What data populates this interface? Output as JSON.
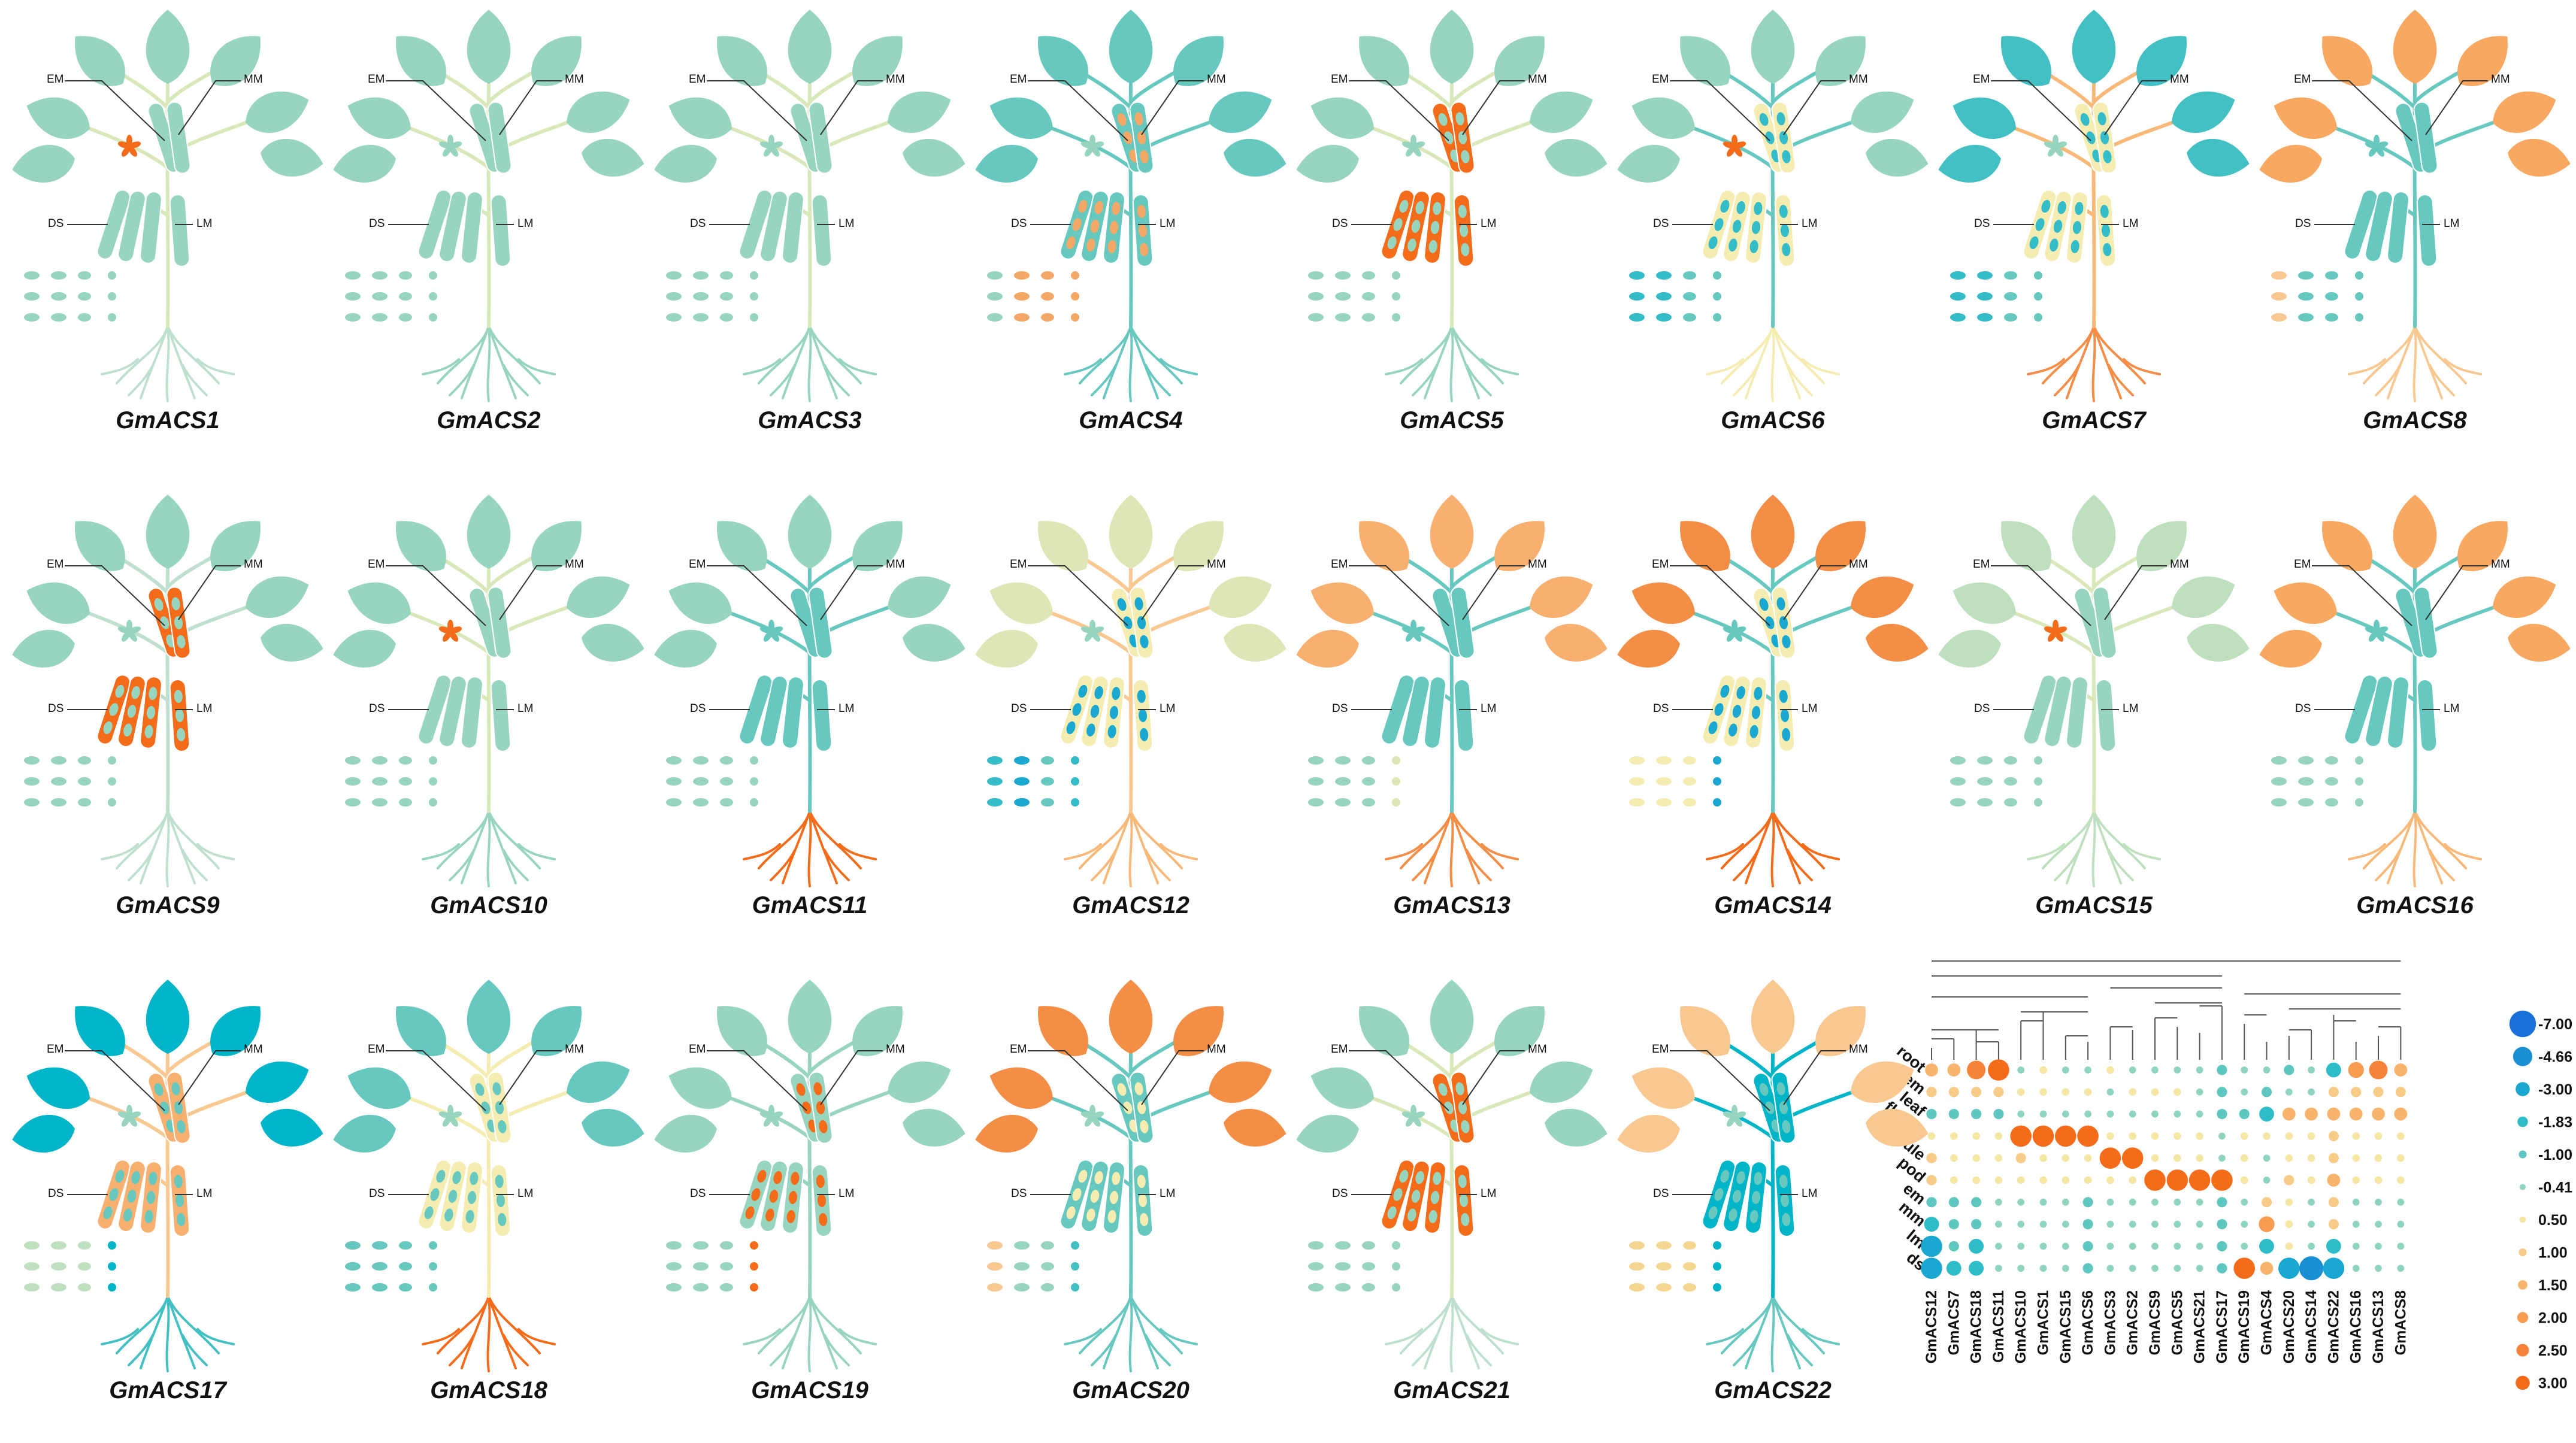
{
  "colors": {
    "low": "#00b5c8",
    "mid": "#f5ecb2",
    "high": "#f46c1a",
    "neutral": "#98d5be"
  },
  "tissue_labels": {
    "em": "EM",
    "mm": "MM",
    "ds": "DS",
    "lm": "LM"
  },
  "plants": [
    {
      "name": "GmACS1",
      "leaf": "#98d5be",
      "stem": "#d8e8b8",
      "root": "#bfe0cf",
      "pod": "#98d5be",
      "seed": "#98d5be",
      "flower": "#f46c1a",
      "dots": [
        "#98d5be",
        "#98d5be",
        "#98d5be",
        "#98d5be"
      ]
    },
    {
      "name": "GmACS2",
      "leaf": "#98d5be",
      "stem": "#d8e8b8",
      "root": "#98d5be",
      "pod": "#98d5be",
      "seed": "#98d5be",
      "flower": "#98d5be",
      "dots": [
        "#98d5be",
        "#98d5be",
        "#98d5be",
        "#98d5be"
      ]
    },
    {
      "name": "GmACS3",
      "leaf": "#98d5be",
      "stem": "#d8e8b8",
      "root": "#98d5be",
      "pod": "#98d5be",
      "seed": "#98d5be",
      "flower": "#98d5be",
      "dots": [
        "#98d5be",
        "#98d5be",
        "#98d5be",
        "#98d5be"
      ]
    },
    {
      "name": "GmACS4",
      "leaf": "#66c8bf",
      "stem": "#66c8bf",
      "root": "#66c8bf",
      "pod": "#66c8bf",
      "seed": "#f4a868",
      "flower": "#98d5be",
      "dots": [
        "#98d5be",
        "#f4a868",
        "#f4a868",
        "#f4a868"
      ]
    },
    {
      "name": "GmACS5",
      "leaf": "#98d5be",
      "stem": "#d8e8b8",
      "root": "#98d5be",
      "pod": "#f46c1a",
      "seed": "#98d5be",
      "flower": "#98d5be",
      "dots": [
        "#98d5be",
        "#98d5be",
        "#98d5be",
        "#98d5be"
      ]
    },
    {
      "name": "GmACS6",
      "leaf": "#98d5be",
      "stem": "#66c8bf",
      "root": "#f5ecb2",
      "pod": "#f5ecb2",
      "seed": "#34bcc8",
      "flower": "#f46c1a",
      "dots": [
        "#34bcc8",
        "#34bcc8",
        "#66c8bf",
        "#66c8bf"
      ]
    },
    {
      "name": "GmACS7",
      "leaf": "#42c0c4",
      "stem": "#f8b978",
      "root": "#f48d45",
      "pod": "#f5ecb2",
      "seed": "#34bcc8",
      "flower": "#98d5be",
      "dots": [
        "#34bcc8",
        "#34bcc8",
        "#66c8bf",
        "#66c8bf"
      ]
    },
    {
      "name": "GmACS8",
      "leaf": "#f8a860",
      "stem": "#66c8bf",
      "root": "#f8c890",
      "pod": "#66c8bf",
      "seed": "#66c8bf",
      "flower": "#66c8bf",
      "dots": [
        "#f8c890",
        "#66c8bf",
        "#66c8bf",
        "#66c8bf"
      ]
    },
    {
      "name": "GmACS9",
      "leaf": "#98d5be",
      "stem": "#bfe0cf",
      "root": "#bfe0cf",
      "pod": "#f46c1a",
      "seed": "#98d5be",
      "flower": "#98d5be",
      "dots": [
        "#98d5be",
        "#98d5be",
        "#98d5be",
        "#98d5be"
      ]
    },
    {
      "name": "GmACS10",
      "leaf": "#98d5be",
      "stem": "#d8e8b8",
      "root": "#98d5be",
      "pod": "#98d5be",
      "seed": "#98d5be",
      "flower": "#f46c1a",
      "dots": [
        "#98d5be",
        "#98d5be",
        "#98d5be",
        "#98d5be"
      ]
    },
    {
      "name": "GmACS11",
      "leaf": "#98d5be",
      "stem": "#66c8bf",
      "root": "#f46c1a",
      "pod": "#66c8bf",
      "seed": "#66c8bf",
      "flower": "#66c8bf",
      "dots": [
        "#98d5be",
        "#98d5be",
        "#98d5be",
        "#98d5be"
      ]
    },
    {
      "name": "GmACS12",
      "leaf": "#dde6b4",
      "stem": "#f8c890",
      "root": "#f8b978",
      "pod": "#f5ecb2",
      "seed": "#1aa8d0",
      "flower": "#98d5be",
      "dots": [
        "#34bcc8",
        "#1aa8d0",
        "#66c8bf",
        "#34bcc8"
      ]
    },
    {
      "name": "GmACS13",
      "leaf": "#f8b070",
      "stem": "#66c8bf",
      "root": "#f48d45",
      "pod": "#66c8bf",
      "seed": "#66c8bf",
      "flower": "#66c8bf",
      "dots": [
        "#98d5be",
        "#98d5be",
        "#98d5be",
        "#dde6b4"
      ]
    },
    {
      "name": "GmACS14",
      "leaf": "#f48d45",
      "stem": "#66c8bf",
      "root": "#f46c1a",
      "pod": "#f5ecb2",
      "seed": "#1aa8d0",
      "flower": "#66c8bf",
      "dots": [
        "#f5ecb2",
        "#f5ecb2",
        "#f5ecb2",
        "#1aa8d0"
      ]
    },
    {
      "name": "GmACS15",
      "leaf": "#bfe0bf",
      "stem": "#d8e8b8",
      "root": "#bfe0bf",
      "pod": "#98d5be",
      "seed": "#98d5be",
      "flower": "#f46c1a",
      "dots": [
        "#98d5be",
        "#98d5be",
        "#98d5be",
        "#98d5be"
      ]
    },
    {
      "name": "GmACS16",
      "leaf": "#f8a860",
      "stem": "#66c8bf",
      "root": "#f8b978",
      "pod": "#66c8bf",
      "seed": "#66c8bf",
      "flower": "#66c8bf",
      "dots": [
        "#98d5be",
        "#98d5be",
        "#98d5be",
        "#98d5be"
      ]
    },
    {
      "name": "GmACS17",
      "leaf": "#00b5c8",
      "stem": "#f8c890",
      "root": "#42c0c4",
      "pod": "#f8b070",
      "seed": "#66c8bf",
      "flower": "#98d5be",
      "dots": [
        "#bfe0bf",
        "#bfe0bf",
        "#bfe0bf",
        "#00b5c8"
      ]
    },
    {
      "name": "GmACS18",
      "leaf": "#66c8bf",
      "stem": "#f5ecb2",
      "root": "#f46c1a",
      "pod": "#f5ecb2",
      "seed": "#66c8bf",
      "flower": "#98d5be",
      "dots": [
        "#66c8bf",
        "#66c8bf",
        "#66c8bf",
        "#66c8bf"
      ]
    },
    {
      "name": "GmACS19",
      "leaf": "#98d5be",
      "stem": "#98d5be",
      "root": "#98d5be",
      "pod": "#98d5be",
      "seed": "#f46c1a",
      "flower": "#98d5be",
      "dots": [
        "#98d5be",
        "#98d5be",
        "#98d5be",
        "#f46c1a"
      ]
    },
    {
      "name": "GmACS20",
      "leaf": "#f48d45",
      "stem": "#66c8bf",
      "root": "#66c8bf",
      "pod": "#66c8bf",
      "seed": "#f5ecb2",
      "flower": "#98d5be",
      "dots": [
        "#f8c890",
        "#98d5be",
        "#98d5be",
        "#42c0c4"
      ]
    },
    {
      "name": "GmACS21",
      "leaf": "#98d5be",
      "stem": "#d8e8b8",
      "root": "#bfe0cf",
      "pod": "#f46c1a",
      "seed": "#98d5be",
      "flower": "#98d5be",
      "dots": [
        "#98d5be",
        "#98d5be",
        "#98d5be",
        "#98d5be"
      ]
    },
    {
      "name": "GmACS22",
      "leaf": "#f8c890",
      "stem": "#00b5c8",
      "root": "#66c8bf",
      "pod": "#00b5c8",
      "seed": "#66c8bf",
      "flower": "#98d5be",
      "dots": [
        "#f5d690",
        "#f5d690",
        "#f5d690",
        "#00b5c8"
      ]
    }
  ],
  "heatmap": {
    "rows": [
      "root",
      "stem",
      "leaf",
      "flower",
      "nodule",
      "pod",
      "em",
      "mm",
      "lm",
      "ds"
    ],
    "columns": [
      "GmACS12",
      "GmACS7",
      "GmACS18",
      "GmACS11",
      "GmACS10",
      "GmACS1",
      "GmACS15",
      "GmACS6",
      "GmACS3",
      "GmACS2",
      "GmACS9",
      "GmACS5",
      "GmACS21",
      "GmACS17",
      "GmACS19",
      "GmACS4",
      "GmACS20",
      "GmACS14",
      "GmACS22",
      "GmACS16",
      "GmACS13",
      "GmACS8"
    ],
    "values": [
      [
        1.5,
        1.5,
        2.5,
        3.0,
        -0.41,
        0.5,
        -0.41,
        -0.41,
        0.5,
        -0.41,
        -0.41,
        -0.41,
        -0.41,
        -1.0,
        -0.41,
        -0.41,
        -1.0,
        -0.41,
        -1.83,
        2.0,
        2.5,
        1.5
      ],
      [
        1.0,
        1.0,
        1.0,
        1.0,
        0.5,
        0.5,
        0.5,
        0.5,
        -0.41,
        0.5,
        0.5,
        0.5,
        -0.41,
        -1.0,
        -0.41,
        -1.0,
        -0.41,
        -0.41,
        1.0,
        1.0,
        1.0,
        1.0
      ],
      [
        -1.0,
        -1.0,
        -1.0,
        -1.0,
        -0.41,
        -0.41,
        -0.41,
        -0.41,
        -0.41,
        -0.41,
        -0.41,
        -0.41,
        -0.41,
        -1.0,
        -1.0,
        -1.83,
        1.5,
        1.5,
        1.5,
        1.5,
        1.5,
        1.5
      ],
      [
        0.5,
        0.5,
        0.5,
        0.5,
        3.0,
        3.0,
        3.0,
        3.0,
        0.5,
        0.5,
        0.5,
        0.5,
        0.5,
        -0.41,
        0.5,
        0.5,
        0.5,
        0.5,
        1.0,
        0.5,
        0.5,
        0.5
      ],
      [
        1.0,
        0.5,
        0.5,
        0.5,
        1.0,
        0.5,
        0.5,
        0.5,
        3.0,
        3.0,
        0.5,
        0.5,
        0.5,
        -0.41,
        0.5,
        -0.41,
        0.5,
        0.5,
        1.0,
        0.5,
        0.5,
        0.5
      ],
      [
        1.0,
        0.5,
        0.5,
        0.5,
        0.5,
        0.5,
        0.5,
        0.5,
        0.5,
        0.5,
        3.0,
        3.0,
        3.0,
        3.0,
        0.5,
        -0.41,
        1.0,
        0.5,
        1.5,
        0.5,
        0.5,
        0.5
      ],
      [
        -1.0,
        -1.0,
        -1.0,
        -0.41,
        -0.41,
        -0.41,
        -0.41,
        -1.0,
        -0.41,
        -0.41,
        -0.41,
        -0.41,
        -0.41,
        -1.0,
        -0.41,
        1.0,
        0.5,
        -0.41,
        1.0,
        -0.41,
        -0.41,
        -0.41
      ],
      [
        -1.83,
        -1.0,
        -1.0,
        -0.41,
        -0.41,
        -0.41,
        -0.41,
        -1.0,
        -0.41,
        -0.41,
        -0.41,
        -0.41,
        -0.41,
        -1.0,
        -0.41,
        2.0,
        0.5,
        -0.41,
        1.0,
        -0.41,
        -0.41,
        -0.41
      ],
      [
        -3.0,
        -1.0,
        -1.83,
        -0.41,
        -0.41,
        -0.41,
        -0.41,
        -1.0,
        -0.41,
        -0.41,
        -0.41,
        -0.41,
        -0.41,
        -1.0,
        -0.41,
        -1.83,
        0.5,
        -0.41,
        -1.83,
        -0.41,
        -0.41,
        -0.41
      ],
      [
        -3.0,
        -1.83,
        -1.83,
        -0.41,
        -0.41,
        -0.41,
        -0.41,
        -1.0,
        -0.41,
        -0.41,
        -0.41,
        -0.41,
        -0.41,
        -1.0,
        3.0,
        1.5,
        -3.0,
        -4.66,
        -3.0,
        -0.41,
        -0.41,
        -0.41
      ]
    ],
    "legend": [
      {
        "value": -7.0,
        "label": "-7.00",
        "color": "#1a6fd8"
      },
      {
        "value": -4.66,
        "label": "-4.66",
        "color": "#1a8fd4"
      },
      {
        "value": -3.0,
        "label": "-3.00",
        "color": "#1aa8d0"
      },
      {
        "value": -1.83,
        "label": "-1.83",
        "color": "#2ebcc8"
      },
      {
        "value": -1.0,
        "label": "-1.00",
        "color": "#5ec8c0"
      },
      {
        "value": -0.41,
        "label": "-0.41",
        "color": "#8fd4c0"
      },
      {
        "value": 0.5,
        "label": "0.50",
        "color": "#f5e6a4"
      },
      {
        "value": 1.0,
        "label": "1.00",
        "color": "#f8cc88"
      },
      {
        "value": 1.5,
        "label": "1.50",
        "color": "#f8b46c"
      },
      {
        "value": 2.0,
        "label": "2.00",
        "color": "#f79c50"
      },
      {
        "value": 2.5,
        "label": "2.50",
        "color": "#f68438"
      },
      {
        "value": 3.0,
        "label": "3.00",
        "color": "#f46c1a"
      }
    ]
  }
}
